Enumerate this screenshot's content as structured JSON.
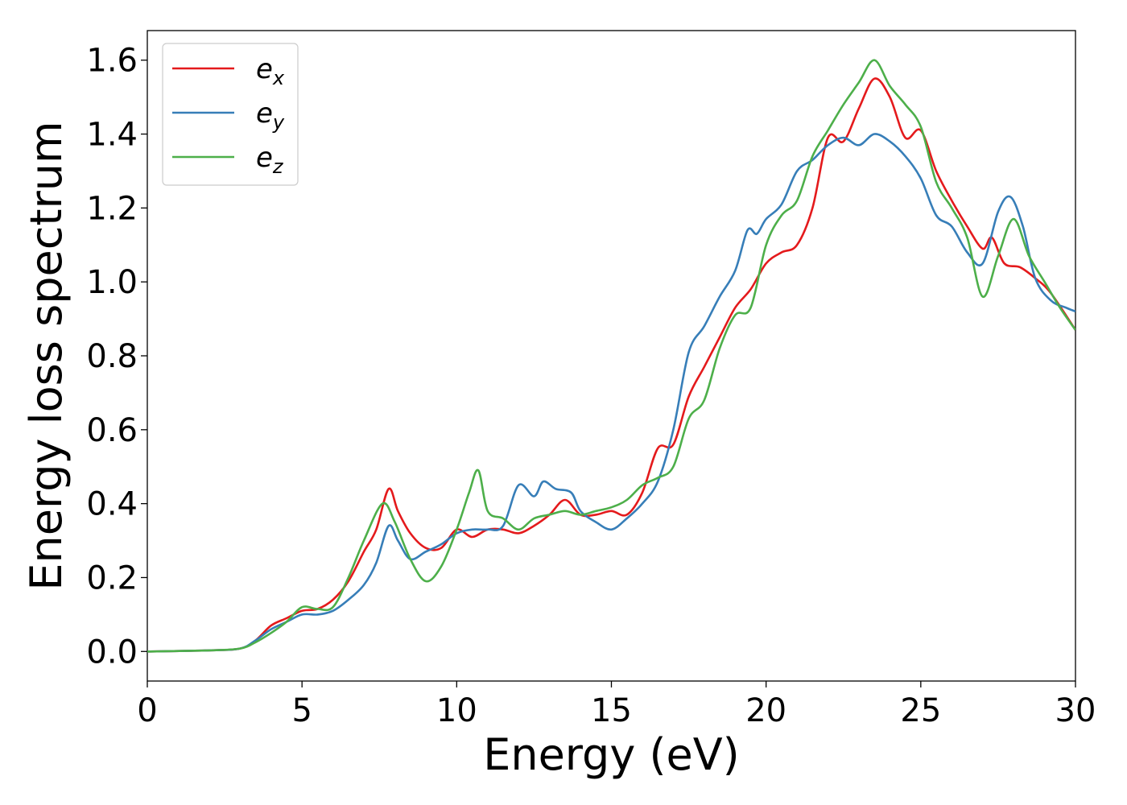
{
  "chart_data": {
    "type": "line",
    "xlabel": "Energy (eV)",
    "ylabel": "Energy loss spectrum",
    "xlim": [
      0,
      30
    ],
    "ylim": [
      -0.08,
      1.68
    ],
    "xticks": [
      0,
      5,
      10,
      15,
      20,
      25,
      30
    ],
    "xtick_labels": [
      "0",
      "5",
      "10",
      "15",
      "20",
      "25",
      "30"
    ],
    "yticks": [
      0.0,
      0.2,
      0.4,
      0.6,
      0.8,
      1.0,
      1.2,
      1.4,
      1.6
    ],
    "ytick_labels": [
      "0.0",
      "0.2",
      "0.4",
      "0.6",
      "0.8",
      "1.0",
      "1.2",
      "1.4",
      "1.6"
    ],
    "grid": false,
    "legend_position": "top-left",
    "series": [
      {
        "base": "e",
        "sub": "x",
        "color": "#e41a1c",
        "points": [
          [
            0,
            0
          ],
          [
            2,
            0.003
          ],
          [
            3,
            0.008
          ],
          [
            3.5,
            0.03
          ],
          [
            4,
            0.07
          ],
          [
            4.5,
            0.09
          ],
          [
            5,
            0.11
          ],
          [
            5.5,
            0.115
          ],
          [
            6,
            0.14
          ],
          [
            6.5,
            0.19
          ],
          [
            7,
            0.27
          ],
          [
            7.4,
            0.33
          ],
          [
            7.8,
            0.44
          ],
          [
            8.1,
            0.38
          ],
          [
            8.5,
            0.32
          ],
          [
            9,
            0.28
          ],
          [
            9.5,
            0.28
          ],
          [
            10,
            0.33
          ],
          [
            10.5,
            0.31
          ],
          [
            11,
            0.33
          ],
          [
            11.5,
            0.33
          ],
          [
            12,
            0.32
          ],
          [
            12.5,
            0.34
          ],
          [
            13,
            0.37
          ],
          [
            13.5,
            0.41
          ],
          [
            14,
            0.37
          ],
          [
            14.5,
            0.37
          ],
          [
            15,
            0.38
          ],
          [
            15.5,
            0.37
          ],
          [
            16,
            0.43
          ],
          [
            16.5,
            0.55
          ],
          [
            17,
            0.56
          ],
          [
            17.5,
            0.69
          ],
          [
            18,
            0.77
          ],
          [
            18.5,
            0.85
          ],
          [
            19,
            0.93
          ],
          [
            19.5,
            0.98
          ],
          [
            20,
            1.05
          ],
          [
            20.5,
            1.08
          ],
          [
            21,
            1.1
          ],
          [
            21.5,
            1.2
          ],
          [
            22,
            1.39
          ],
          [
            22.5,
            1.38
          ],
          [
            23,
            1.47
          ],
          [
            23.5,
            1.55
          ],
          [
            24,
            1.5
          ],
          [
            24.5,
            1.39
          ],
          [
            25,
            1.41
          ],
          [
            25.5,
            1.3
          ],
          [
            26,
            1.22
          ],
          [
            26.5,
            1.15
          ],
          [
            27,
            1.09
          ],
          [
            27.3,
            1.12
          ],
          [
            27.7,
            1.05
          ],
          [
            28.2,
            1.04
          ],
          [
            28.7,
            1.01
          ],
          [
            29.2,
            0.97
          ],
          [
            30,
            0.87
          ]
        ]
      },
      {
        "base": "e",
        "sub": "y",
        "color": "#377eb8",
        "points": [
          [
            0,
            0
          ],
          [
            2,
            0.003
          ],
          [
            3,
            0.008
          ],
          [
            3.5,
            0.03
          ],
          [
            4,
            0.06
          ],
          [
            4.5,
            0.08
          ],
          [
            5,
            0.1
          ],
          [
            5.5,
            0.1
          ],
          [
            6,
            0.11
          ],
          [
            6.5,
            0.14
          ],
          [
            7,
            0.18
          ],
          [
            7.4,
            0.24
          ],
          [
            7.8,
            0.34
          ],
          [
            8.1,
            0.3
          ],
          [
            8.5,
            0.25
          ],
          [
            9,
            0.27
          ],
          [
            9.5,
            0.29
          ],
          [
            10,
            0.32
          ],
          [
            10.5,
            0.33
          ],
          [
            11,
            0.33
          ],
          [
            11.5,
            0.34
          ],
          [
            12,
            0.45
          ],
          [
            12.5,
            0.42
          ],
          [
            12.8,
            0.46
          ],
          [
            13.2,
            0.44
          ],
          [
            13.7,
            0.43
          ],
          [
            14,
            0.38
          ],
          [
            14.5,
            0.35
          ],
          [
            15,
            0.33
          ],
          [
            15.5,
            0.36
          ],
          [
            16,
            0.4
          ],
          [
            16.5,
            0.46
          ],
          [
            17,
            0.6
          ],
          [
            17.5,
            0.81
          ],
          [
            18,
            0.88
          ],
          [
            18.5,
            0.96
          ],
          [
            19,
            1.03
          ],
          [
            19.4,
            1.14
          ],
          [
            19.7,
            1.13
          ],
          [
            20,
            1.17
          ],
          [
            20.5,
            1.21
          ],
          [
            21,
            1.3
          ],
          [
            21.5,
            1.33
          ],
          [
            22,
            1.37
          ],
          [
            22.5,
            1.39
          ],
          [
            23,
            1.37
          ],
          [
            23.5,
            1.4
          ],
          [
            24,
            1.38
          ],
          [
            24.5,
            1.34
          ],
          [
            25,
            1.28
          ],
          [
            25.5,
            1.18
          ],
          [
            26,
            1.15
          ],
          [
            26.5,
            1.08
          ],
          [
            27,
            1.05
          ],
          [
            27.5,
            1.19
          ],
          [
            27.9,
            1.23
          ],
          [
            28.3,
            1.15
          ],
          [
            28.7,
            1.01
          ],
          [
            29.2,
            0.95
          ],
          [
            29.7,
            0.93
          ],
          [
            30,
            0.92
          ]
        ]
      },
      {
        "base": "e",
        "sub": "z",
        "color": "#4daf4a",
        "points": [
          [
            0,
            0
          ],
          [
            2,
            0.003
          ],
          [
            3,
            0.008
          ],
          [
            3.5,
            0.025
          ],
          [
            4,
            0.05
          ],
          [
            4.5,
            0.08
          ],
          [
            5,
            0.12
          ],
          [
            5.5,
            0.115
          ],
          [
            6,
            0.12
          ],
          [
            6.5,
            0.2
          ],
          [
            7,
            0.3
          ],
          [
            7.6,
            0.4
          ],
          [
            8,
            0.35
          ],
          [
            8.5,
            0.25
          ],
          [
            9,
            0.19
          ],
          [
            9.5,
            0.23
          ],
          [
            10,
            0.33
          ],
          [
            10.4,
            0.43
          ],
          [
            10.7,
            0.49
          ],
          [
            11,
            0.38
          ],
          [
            11.5,
            0.36
          ],
          [
            12,
            0.33
          ],
          [
            12.5,
            0.36
          ],
          [
            13,
            0.37
          ],
          [
            13.5,
            0.38
          ],
          [
            14,
            0.37
          ],
          [
            14.5,
            0.38
          ],
          [
            15,
            0.39
          ],
          [
            15.5,
            0.41
          ],
          [
            16,
            0.45
          ],
          [
            16.5,
            0.47
          ],
          [
            17,
            0.5
          ],
          [
            17.5,
            0.63
          ],
          [
            18,
            0.68
          ],
          [
            18.5,
            0.82
          ],
          [
            19,
            0.91
          ],
          [
            19.5,
            0.93
          ],
          [
            20,
            1.1
          ],
          [
            20.5,
            1.18
          ],
          [
            21,
            1.22
          ],
          [
            21.5,
            1.34
          ],
          [
            22,
            1.41
          ],
          [
            22.5,
            1.48
          ],
          [
            23,
            1.54
          ],
          [
            23.5,
            1.6
          ],
          [
            24,
            1.53
          ],
          [
            24.5,
            1.48
          ],
          [
            25,
            1.42
          ],
          [
            25.5,
            1.27
          ],
          [
            26,
            1.2
          ],
          [
            26.5,
            1.12
          ],
          [
            27,
            0.96
          ],
          [
            27.5,
            1.07
          ],
          [
            28,
            1.17
          ],
          [
            28.5,
            1.07
          ],
          [
            29,
            1.0
          ],
          [
            29.5,
            0.93
          ],
          [
            30,
            0.87
          ]
        ]
      }
    ]
  }
}
